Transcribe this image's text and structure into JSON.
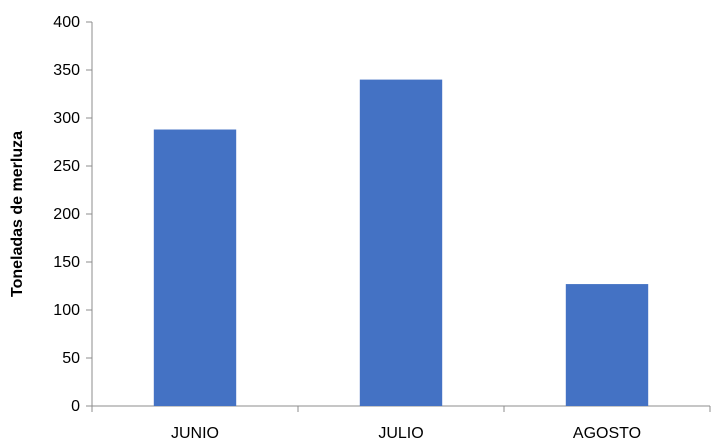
{
  "chart_data": {
    "type": "bar",
    "title": "",
    "xlabel": "",
    "ylabel": "Toneladas de merluza",
    "categories": [
      "JUNIO",
      "JULIO",
      "AGOSTO"
    ],
    "values": [
      288,
      340,
      127
    ],
    "ylim": [
      0,
      400
    ],
    "yticks": [
      0,
      50,
      100,
      150,
      200,
      250,
      300,
      350,
      400
    ],
    "grid": false,
    "legend": "none",
    "bar_color": "#4472C4"
  }
}
